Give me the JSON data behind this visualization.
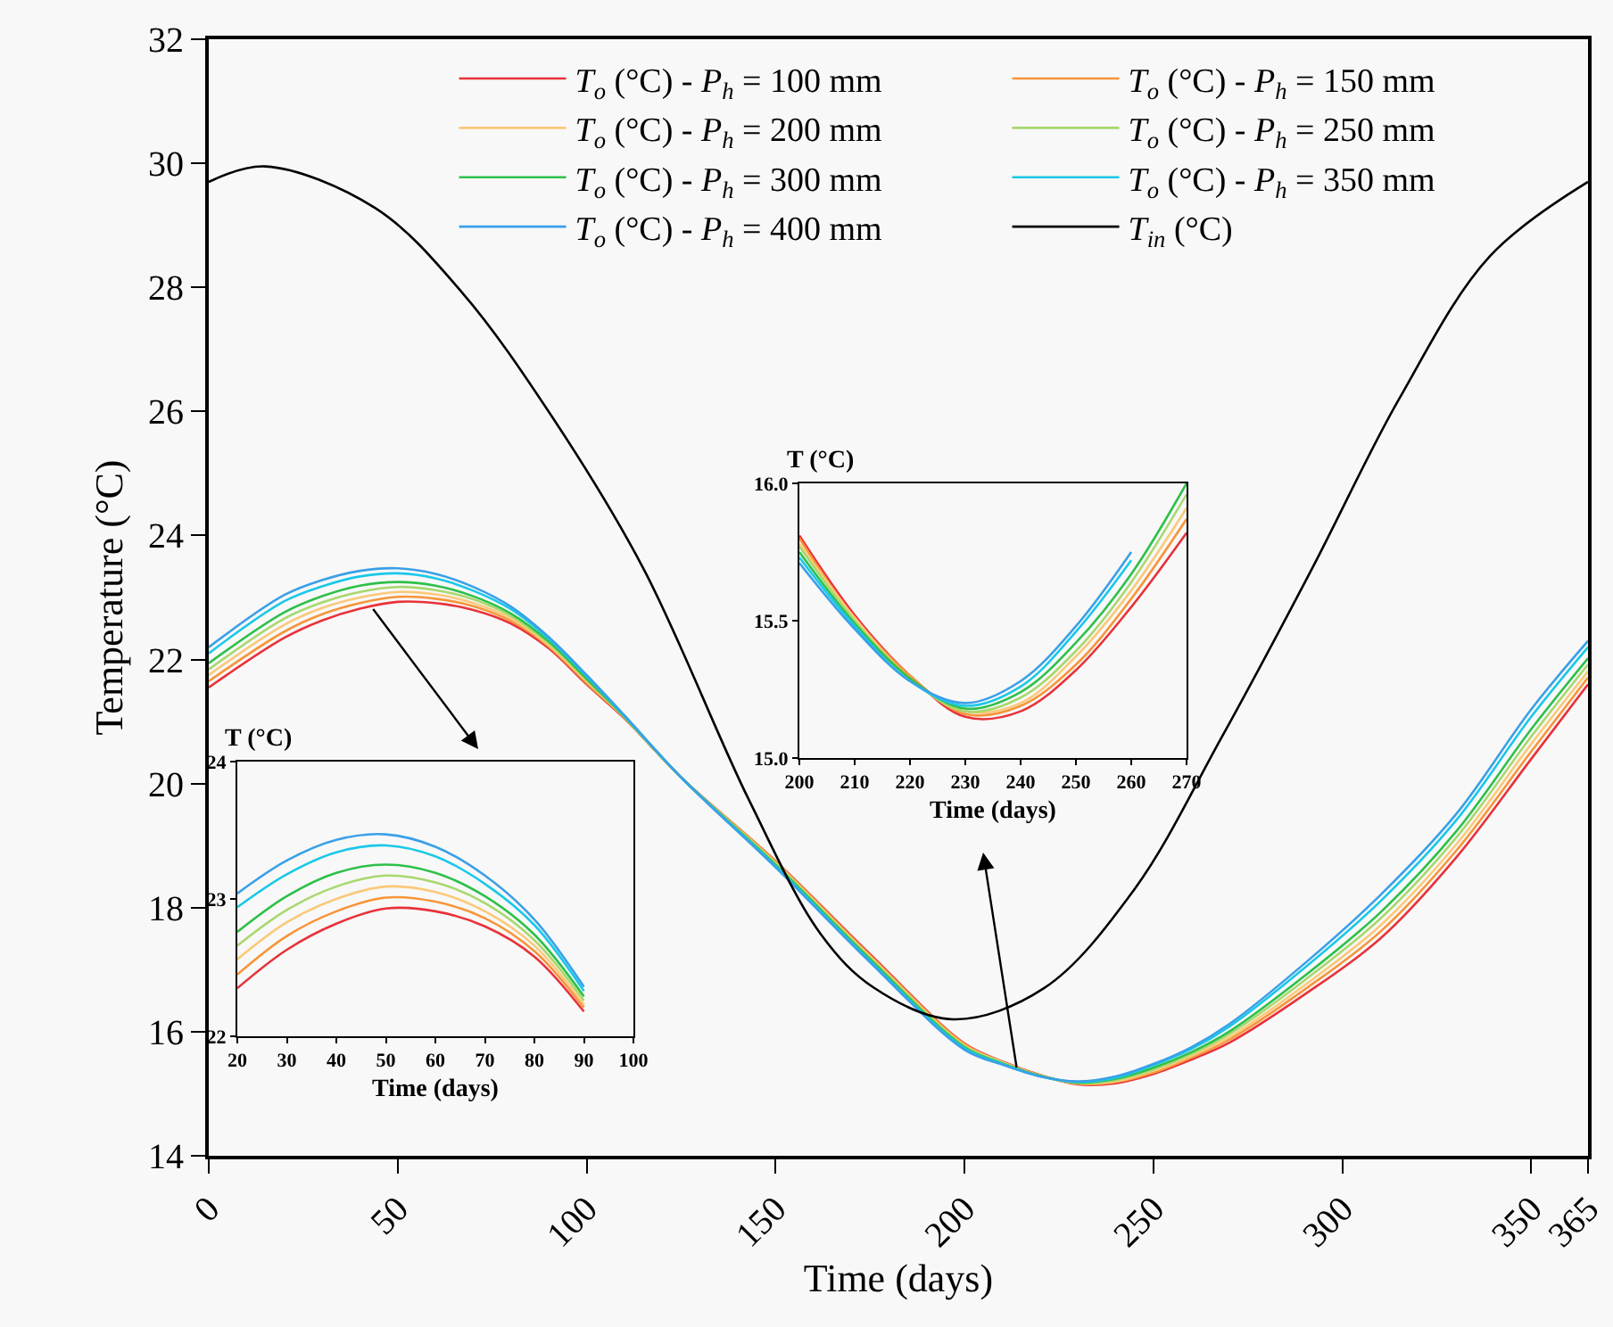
{
  "chart_data": [
    {
      "type": "line",
      "xlabel": "Time (days)",
      "ylabel": "Temperature (°C)",
      "xlim": [
        0,
        365
      ],
      "xticks": [
        0,
        50,
        100,
        150,
        200,
        250,
        300,
        350,
        365
      ],
      "ylim": [
        14,
        32
      ],
      "yticks": [
        14,
        16,
        18,
        20,
        22,
        24,
        26,
        28,
        30,
        32
      ],
      "grid": false,
      "legend": "top",
      "marker": "none",
      "x": [
        0,
        20,
        30,
        40,
        50,
        60,
        70,
        80,
        90,
        100,
        110,
        125,
        150,
        175,
        200,
        210,
        220,
        230,
        240,
        250,
        260,
        270,
        290,
        310,
        330,
        350,
        365
      ],
      "series": [
        {
          "name": "T$_{o}$ (°C) - P$_{h}$ = 100 mm",
          "color": "#e8323a",
          "values": [
            21.55,
            22.35,
            22.63,
            22.82,
            22.93,
            22.91,
            22.8,
            22.58,
            22.18,
            21.6,
            21.05,
            20.1,
            18.75,
            17.25,
            15.81,
            15.52,
            15.3,
            15.15,
            15.17,
            15.32,
            15.55,
            15.82,
            16.6,
            17.5,
            18.8,
            20.4,
            21.6
          ]
        },
        {
          "name": "T$_{o}$ (°C) - P$_{h}$ = 150 mm",
          "color": "#f7953a",
          "values": [
            21.65,
            22.45,
            22.73,
            22.91,
            23.01,
            22.98,
            22.86,
            22.62,
            22.21,
            21.62,
            21.06,
            20.1,
            18.74,
            17.23,
            15.8,
            15.51,
            15.3,
            15.16,
            15.19,
            15.34,
            15.58,
            15.87,
            16.68,
            17.61,
            18.91,
            20.52,
            21.71
          ]
        },
        {
          "name": "T$_{o}$ (°C) - P$_{h}$ = 200 mm",
          "color": "#fbc97a",
          "values": [
            21.75,
            22.56,
            22.83,
            23.0,
            23.09,
            23.05,
            22.91,
            22.66,
            22.23,
            21.65,
            21.07,
            20.1,
            18.72,
            17.21,
            15.78,
            15.51,
            15.29,
            15.17,
            15.2,
            15.37,
            15.61,
            15.91,
            16.75,
            17.71,
            19.01,
            20.64,
            21.81
          ]
        },
        {
          "name": "T$_{o}$ (°C) - P$_{h}$ = 250 mm",
          "color": "#a8d86e",
          "values": [
            21.84,
            22.66,
            22.92,
            23.09,
            23.17,
            23.12,
            22.97,
            22.7,
            22.26,
            21.67,
            21.07,
            20.1,
            18.71,
            17.19,
            15.77,
            15.5,
            15.29,
            15.17,
            15.22,
            15.39,
            15.64,
            15.96,
            16.83,
            17.82,
            19.12,
            20.76,
            21.92
          ]
        },
        {
          "name": "T$_{o}$ (°C) - P$_{h}$ = 300 mm",
          "color": "#2ec04a",
          "values": [
            21.94,
            22.76,
            23.02,
            23.19,
            23.25,
            23.19,
            23.02,
            22.74,
            22.29,
            21.69,
            21.08,
            20.1,
            18.69,
            17.17,
            15.75,
            15.49,
            15.29,
            15.18,
            15.24,
            15.42,
            15.67,
            16.0,
            16.9,
            17.92,
            19.22,
            20.88,
            22.02
          ]
        },
        {
          "name": "T$_{o}$ (°C) - P$_{h}$ = 350 mm",
          "color": "#1ac8e8",
          "values": [
            22.1,
            22.94,
            23.18,
            23.34,
            23.39,
            23.31,
            23.11,
            22.81,
            22.33,
            21.73,
            21.09,
            20.1,
            18.67,
            17.14,
            15.73,
            15.48,
            15.28,
            15.19,
            15.26,
            15.46,
            15.72,
            16.08,
            17.03,
            18.1,
            19.4,
            21.08,
            22.2
          ]
        },
        {
          "name": "T$_{o}$ (°C) - P$_{h}$ = 400 mm",
          "color": "#3aa0e8",
          "values": [
            22.2,
            23.04,
            23.28,
            23.43,
            23.47,
            23.38,
            23.17,
            22.85,
            22.36,
            21.75,
            21.1,
            20.1,
            18.65,
            17.12,
            15.71,
            15.47,
            15.28,
            15.2,
            15.28,
            15.48,
            15.75,
            16.12,
            17.1,
            18.2,
            19.5,
            21.2,
            22.3
          ]
        },
        {
          "name": "T$_{in}$ (°C)",
          "color": "#000000",
          "x": [
            0,
            15,
            44,
            67,
            91,
            115,
            143,
            162,
            176,
            197,
            221,
            245,
            268,
            292,
            315,
            339,
            365
          ],
          "values": [
            29.7,
            29.95,
            29.28,
            27.92,
            25.9,
            23.47,
            19.73,
            17.57,
            16.71,
            16.2,
            16.7,
            18.3,
            20.74,
            23.47,
            26.2,
            28.5,
            29.7
          ]
        }
      ]
    },
    {
      "type": "line",
      "xlabel": "Time (days)",
      "ylabel": "T (°C)",
      "xlim": [
        20,
        100
      ],
      "xticks": [
        20,
        30,
        40,
        50,
        60,
        70,
        80,
        90,
        100
      ],
      "ylim": [
        22,
        24
      ],
      "yticks": [
        22,
        23,
        24
      ],
      "grid": false,
      "legend": false,
      "marker": "none",
      "x": [
        20,
        30,
        40,
        50,
        60,
        70,
        80,
        90
      ],
      "series": [
        {
          "color": "#e8323a",
          "values": [
            22.35,
            22.63,
            22.82,
            22.93,
            22.91,
            22.8,
            22.58,
            22.18
          ]
        },
        {
          "color": "#f7953a",
          "values": [
            22.45,
            22.73,
            22.91,
            23.01,
            22.98,
            22.86,
            22.62,
            22.21
          ]
        },
        {
          "color": "#fbc97a",
          "values": [
            22.56,
            22.83,
            23.0,
            23.09,
            23.05,
            22.91,
            22.66,
            22.23
          ]
        },
        {
          "color": "#a8d86e",
          "values": [
            22.66,
            22.92,
            23.09,
            23.17,
            23.12,
            22.97,
            22.7,
            22.26
          ]
        },
        {
          "color": "#2ec04a",
          "values": [
            22.76,
            23.02,
            23.19,
            23.25,
            23.19,
            23.02,
            22.74,
            22.29
          ]
        },
        {
          "color": "#1ac8e8",
          "values": [
            22.94,
            23.18,
            23.34,
            23.39,
            23.31,
            23.11,
            22.81,
            22.33
          ]
        },
        {
          "color": "#3aa0e8",
          "values": [
            23.04,
            23.28,
            23.43,
            23.47,
            23.38,
            23.17,
            22.85,
            22.36
          ]
        }
      ]
    },
    {
      "type": "line",
      "xlabel": "Time (days)",
      "ylabel": "T (°C)",
      "xlim": [
        200,
        270
      ],
      "xticks": [
        200,
        210,
        220,
        230,
        240,
        250,
        260,
        270
      ],
      "ylim": [
        15,
        16
      ],
      "yticks": [
        {
          "value": 15,
          "label": "15.0"
        },
        15.5,
        {
          "value": 16,
          "label": "16.0"
        }
      ],
      "grid": false,
      "legend": false,
      "marker": "none",
      "x": [
        200,
        210,
        220,
        230,
        240,
        250,
        260,
        270
      ],
      "series": [
        {
          "color": "#e8323a",
          "values": [
            15.81,
            15.52,
            15.3,
            15.15,
            15.17,
            15.32,
            15.55,
            15.82
          ]
        },
        {
          "color": "#f7953a",
          "values": [
            15.8,
            15.51,
            15.3,
            15.16,
            15.19,
            15.34,
            15.58,
            15.87
          ]
        },
        {
          "color": "#fbc97a",
          "values": [
            15.78,
            15.51,
            15.29,
            15.17,
            15.2,
            15.37,
            15.61,
            15.91
          ]
        },
        {
          "color": "#a8d86e",
          "values": [
            15.77,
            15.5,
            15.29,
            15.17,
            15.22,
            15.39,
            15.64,
            15.96
          ]
        },
        {
          "color": "#2ec04a",
          "values": [
            15.75,
            15.49,
            15.29,
            15.18,
            15.24,
            15.42,
            15.67,
            16.0
          ]
        },
        {
          "color": "#1ac8e8",
          "values": [
            15.73,
            15.48,
            15.28,
            15.19,
            15.26,
            15.46,
            15.72,
            null
          ]
        },
        {
          "color": "#3aa0e8",
          "values": [
            15.71,
            15.47,
            15.28,
            15.2,
            15.28,
            15.48,
            15.75,
            null
          ]
        }
      ]
    }
  ]
}
